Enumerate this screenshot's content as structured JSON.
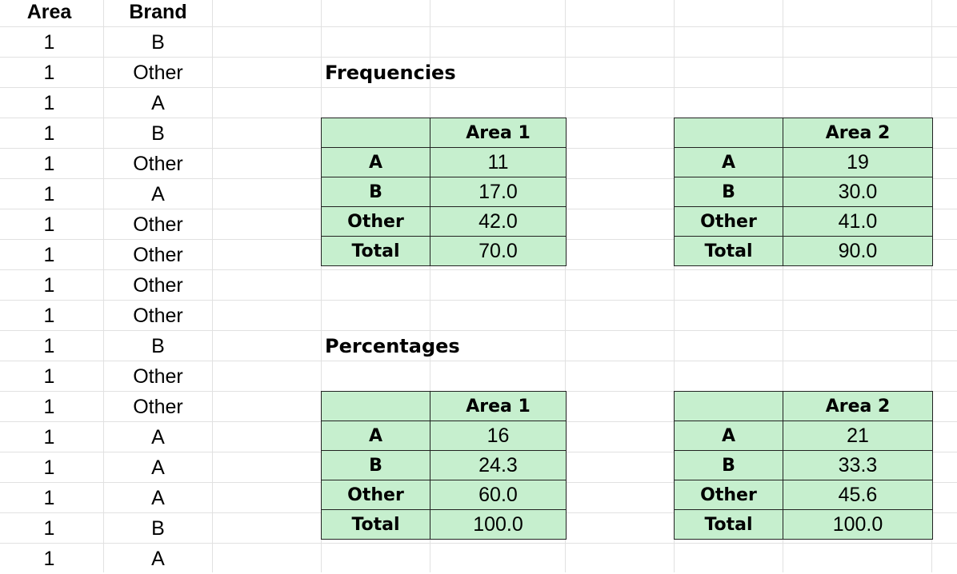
{
  "columns": {
    "area_header": "Area",
    "brand_header": "Brand"
  },
  "rows": [
    {
      "area": "1",
      "brand": "B"
    },
    {
      "area": "1",
      "brand": "Other"
    },
    {
      "area": "1",
      "brand": "A"
    },
    {
      "area": "1",
      "brand": "B"
    },
    {
      "area": "1",
      "brand": "Other"
    },
    {
      "area": "1",
      "brand": "A"
    },
    {
      "area": "1",
      "brand": "Other"
    },
    {
      "area": "1",
      "brand": "Other"
    },
    {
      "area": "1",
      "brand": "Other"
    },
    {
      "area": "1",
      "brand": "Other"
    },
    {
      "area": "1",
      "brand": "B"
    },
    {
      "area": "1",
      "brand": "Other"
    },
    {
      "area": "1",
      "brand": "Other"
    },
    {
      "area": "1",
      "brand": "A"
    },
    {
      "area": "1",
      "brand": "A"
    },
    {
      "area": "1",
      "brand": "A"
    },
    {
      "area": "1",
      "brand": "B"
    },
    {
      "area": "1",
      "brand": "A"
    }
  ],
  "frequencies": {
    "title": "Frequencies",
    "area1": {
      "header": "Area 1",
      "rows": [
        {
          "label": "A",
          "value": "11"
        },
        {
          "label": "B",
          "value": "17.0"
        },
        {
          "label": "Other",
          "value": "42.0"
        },
        {
          "label": "Total",
          "value": "70.0"
        }
      ]
    },
    "area2": {
      "header": "Area 2",
      "rows": [
        {
          "label": "A",
          "value": "19"
        },
        {
          "label": "B",
          "value": "30.0"
        },
        {
          "label": "Other",
          "value": "41.0"
        },
        {
          "label": "Total",
          "value": "90.0"
        }
      ]
    }
  },
  "percentages": {
    "title": "Percentages",
    "area1": {
      "header": "Area 1",
      "rows": [
        {
          "label": "A",
          "value": "16"
        },
        {
          "label": "B",
          "value": "24.3"
        },
        {
          "label": "Other",
          "value": "60.0"
        },
        {
          "label": "Total",
          "value": "100.0"
        }
      ]
    },
    "area2": {
      "header": "Area 2",
      "rows": [
        {
          "label": "A",
          "value": "21"
        },
        {
          "label": "B",
          "value": "33.3"
        },
        {
          "label": "Other",
          "value": "45.6"
        },
        {
          "label": "Total",
          "value": "100.0"
        }
      ]
    }
  },
  "colors": {
    "table_fill": "#c6efce",
    "gridline": "#e1e1e1",
    "table_border": "#222222"
  }
}
